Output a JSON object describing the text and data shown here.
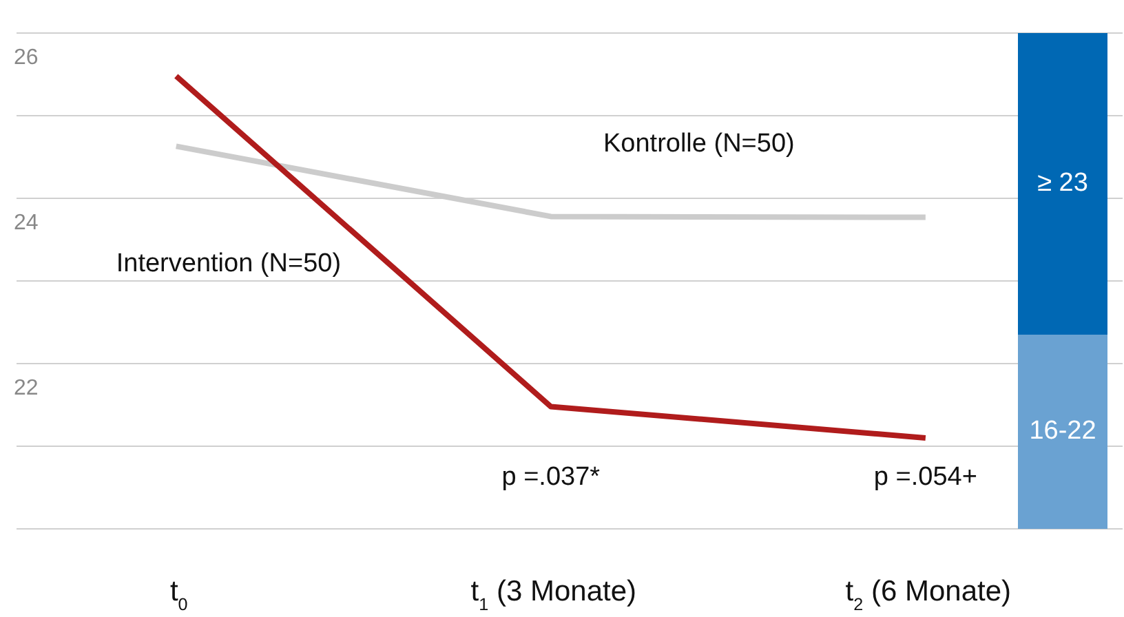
{
  "chart_data": {
    "type": "line",
    "categories": [
      "t$_{0}$",
      "t$_{1}$ (3 Monate)",
      "t$_{2}$ (6 Monate)"
    ],
    "series": [
      {
        "name": "Intervention (N=50)",
        "color": "#b01c1c",
        "values": [
          25.48,
          21.48,
          21.1
        ]
      },
      {
        "name": "Kontrolle (N=50)",
        "color": "#cccccc",
        "values": [
          24.63,
          23.78,
          23.77
        ]
      }
    ],
    "ylim": [
      20,
      26
    ],
    "yticks": [
      {
        "value": 20,
        "label": null
      },
      {
        "value": 21,
        "label": null
      },
      22,
      {
        "value": 23,
        "label": null
      },
      24,
      {
        "value": 25,
        "label": null
      },
      26
    ],
    "grid": "y",
    "legend": false,
    "marker": "none",
    "bands": [
      {
        "axis": "y",
        "from": 22.35,
        "to": 26,
        "label": "≥ 23",
        "color": "#0068b4"
      },
      {
        "axis": "y",
        "from": 20,
        "to": 22.35,
        "label": "16-22",
        "color": "#6aa2d2"
      }
    ],
    "annotations": [
      "p =.037*",
      "p =.054+"
    ]
  }
}
